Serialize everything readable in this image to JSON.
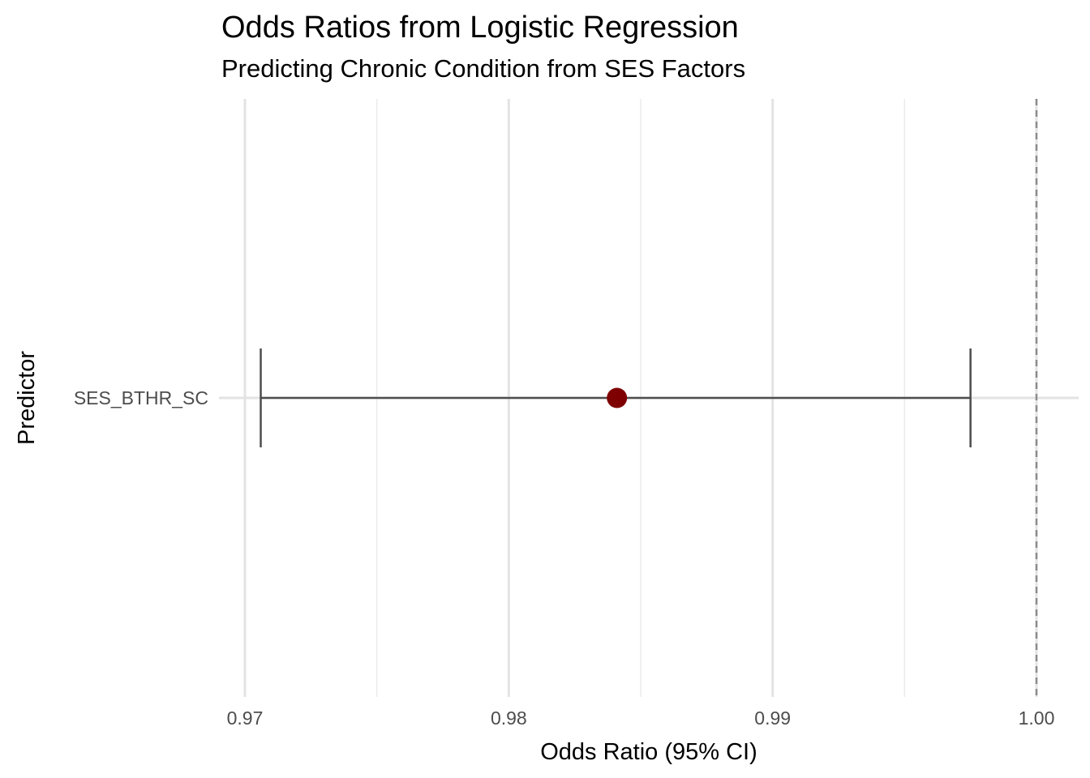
{
  "chart_data": {
    "type": "scatter",
    "title": "Odds Ratios from Logistic Regression",
    "subtitle": "Predicting Chronic Condition from SES Factors",
    "xlabel": "Odds Ratio (95% CI)",
    "ylabel": "Predictor",
    "xlim": [
      0.97,
      1.0
    ],
    "x_ticks": [
      "0.97",
      "0.98",
      "0.99",
      "1.00"
    ],
    "x_tick_values": [
      0.97,
      0.98,
      0.99,
      1.0
    ],
    "x_minor_gridlines": [
      0.975,
      0.985,
      0.995
    ],
    "categories": [
      "SES_BTHR_SC"
    ],
    "points": [
      {
        "predictor": "SES_BTHR_SC",
        "odds_ratio": 0.9841,
        "ci_low": 0.9706,
        "ci_high": 0.9975
      }
    ],
    "reference_line": {
      "x": 1.0,
      "style": "dashed",
      "color": "#8c8c8c"
    },
    "point_color": "#7f0000",
    "errorbar_color": "#4d4d4d",
    "grid": true,
    "legend": "none"
  }
}
